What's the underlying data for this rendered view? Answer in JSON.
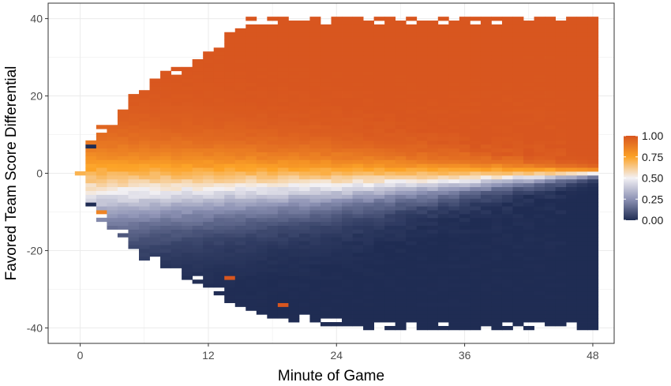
{
  "chart_data": {
    "type": "heatmap",
    "xlabel": "Minute of Game",
    "ylabel": "Favored Team Score Differential",
    "xlim": [
      -3,
      50
    ],
    "ylim": [
      -44,
      44
    ],
    "x_ticks": [
      0,
      12,
      24,
      36,
      48
    ],
    "y_ticks": [
      -40,
      -20,
      0,
      20,
      40
    ],
    "x_tick_labels": [
      "0",
      "12",
      "24",
      "36",
      "48"
    ],
    "y_tick_labels": [
      "-40",
      "-20",
      "0",
      "20",
      "40"
    ],
    "grid": true,
    "cell_width_minutes": 1,
    "cell_height_points": 1,
    "value_range": [
      0,
      1
    ],
    "colorscale": [
      {
        "value": 0.0,
        "color": "#1f2c53"
      },
      {
        "value": 0.25,
        "color": "#8e93b5"
      },
      {
        "value": 0.5,
        "color": "#f3f1f4"
      },
      {
        "value": 0.75,
        "color": "#fca327"
      },
      {
        "value": 1.0,
        "color": "#d8561f"
      }
    ],
    "legend": {
      "position": "right",
      "ticks": [
        1.0,
        0.75,
        0.5,
        0.25,
        0.0
      ],
      "tick_labels": [
        "1.00",
        "0.75",
        "0.50",
        "0.25",
        "0.00"
      ]
    },
    "coverage": {
      "description_points": "score differential range with data per minute",
      "minute": [
        0,
        1,
        2,
        3,
        4,
        5,
        6,
        7,
        8,
        9,
        10,
        11,
        12,
        14,
        16,
        18,
        20,
        24,
        28,
        30,
        36,
        42,
        48
      ],
      "min_diff": [
        0,
        -9,
        -12,
        -14,
        -16,
        -19,
        -22,
        -23,
        -24,
        -26,
        -27,
        -28,
        -29,
        -33,
        -36,
        -37,
        -38,
        -39,
        -40,
        -40,
        -40,
        -40,
        -40
      ],
      "max_diff": [
        0,
        8,
        12,
        14,
        17,
        20,
        22,
        24,
        26,
        27,
        28,
        30,
        32,
        36,
        40,
        40,
        40,
        40,
        40,
        40,
        40,
        40,
        40
      ]
    },
    "probability_model": {
      "description": "Approximate cell value (favored team win probability) as a function of minute and differential",
      "center_diff_at_minute": [
        {
          "minute": 0,
          "center": -5
        },
        {
          "minute": 24,
          "center": -3
        },
        {
          "minute": 48,
          "center": 0
        }
      ],
      "transition_width_at_minute": [
        {
          "minute": 0,
          "width": 11
        },
        {
          "minute": 24,
          "width": 7
        },
        {
          "minute": 48,
          "width": 1.2
        }
      ]
    },
    "annotations": [
      {
        "minute": 1,
        "diff": 7,
        "value": 0.0
      },
      {
        "minute": 1,
        "diff": -8,
        "value": 0.0
      },
      {
        "minute": 2,
        "diff": -10,
        "value": 0.85
      },
      {
        "minute": 14,
        "diff": -27,
        "value": 1.0
      },
      {
        "minute": 19,
        "diff": -34,
        "value": 1.0
      }
    ]
  }
}
